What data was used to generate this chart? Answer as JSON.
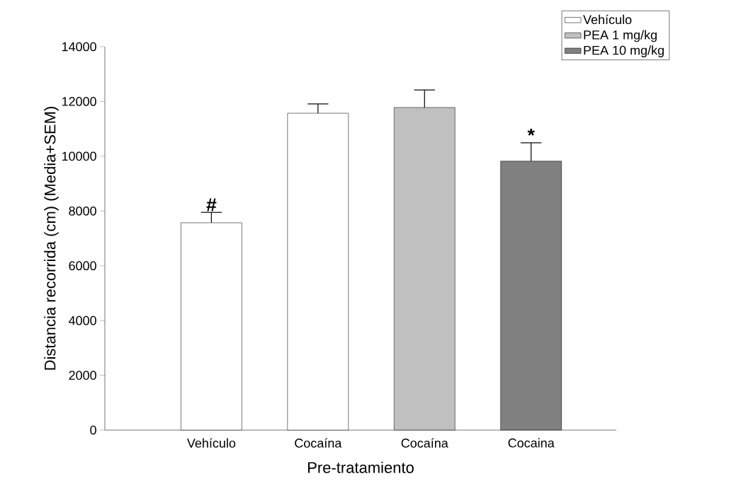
{
  "chart_data": {
    "type": "bar",
    "xlabel": "Pre-tratamiento",
    "ylabel": "Distancia recorrida (cm) (Media+SEM)",
    "categories": [
      "Vehículo",
      "Cocaína",
      "Cocaína",
      "Cocaina"
    ],
    "series": [
      {
        "name": "Vehículo",
        "color": "#ffffff",
        "values": [
          7570,
          11570,
          null,
          null
        ],
        "errors": [
          [
            7570,
            7950
          ],
          [
            11570,
            11910
          ],
          null,
          null
        ]
      },
      {
        "name": "PEA 1 mg/kg",
        "color": "#c0c0c0",
        "values": [
          null,
          null,
          11780,
          null
        ],
        "errors": [
          null,
          null,
          [
            11780,
            12420
          ],
          null
        ]
      },
      {
        "name": "PEA 10 mg/kg",
        "color": "#808080",
        "values": [
          null,
          null,
          null,
          9820
        ],
        "errors": [
          null,
          null,
          null,
          [
            9820,
            10490
          ]
        ]
      }
    ],
    "ylim": [
      0,
      14000
    ],
    "yticks": [
      0,
      2000,
      4000,
      6000,
      8000,
      10000,
      12000,
      14000
    ],
    "annotations": [
      "#",
      "*"
    ],
    "legend": "top right",
    "grid": false
  }
}
